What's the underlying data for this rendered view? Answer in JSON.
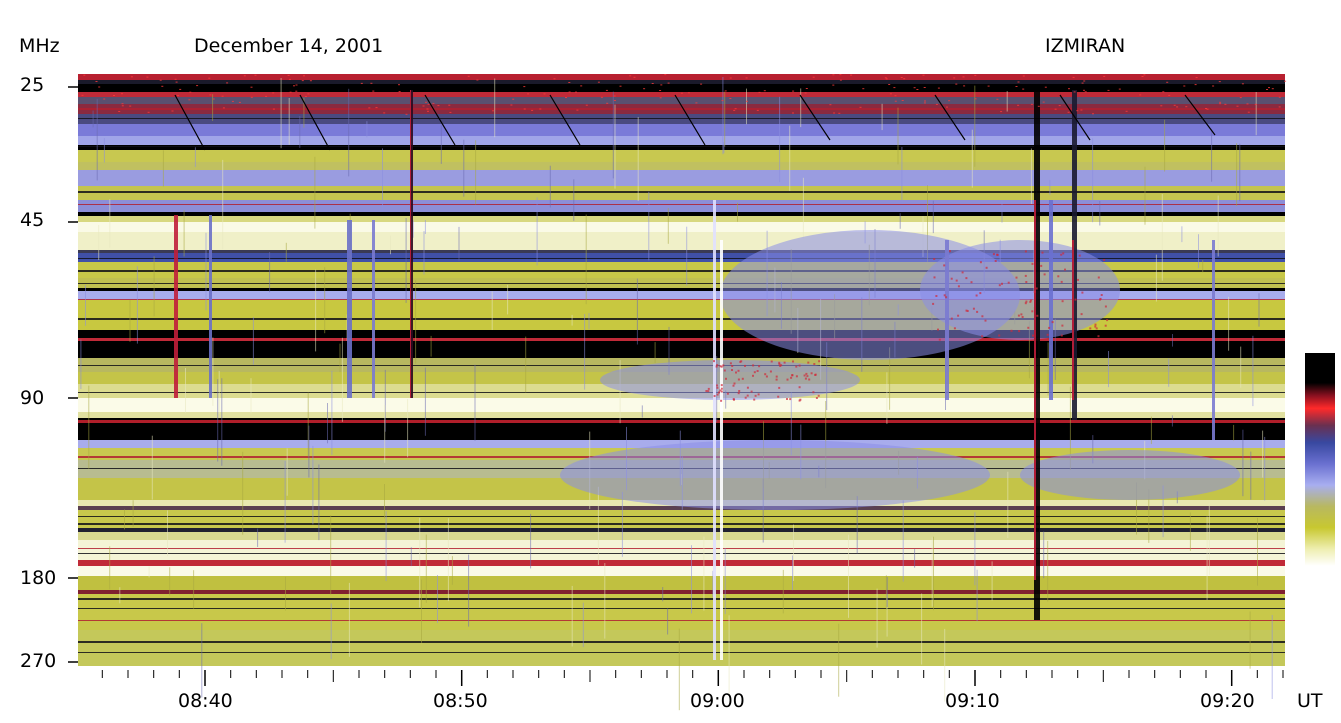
{
  "header": {
    "yunit": "MHz",
    "date": "December 14, 2001",
    "observatory": "IZMIRAN"
  },
  "chart_data": {
    "type": "heatmap",
    "title": "December 14, 2001",
    "source": "IZMIRAN",
    "ylabel": "MHz",
    "xlabel": "UT",
    "y_ticks": [
      "25",
      "45",
      "90",
      "180",
      "270"
    ],
    "y_scale": "log",
    "y_range": [
      25,
      270
    ],
    "x_ticks": [
      "08:40",
      "08:50",
      "09:00",
      "09:10",
      "09:20"
    ],
    "x_range": [
      "08:35",
      "09:22"
    ],
    "grid": false,
    "colorbar": {
      "placement": "right",
      "colors": [
        "#000000",
        "#ff2a2a",
        "#3848a0",
        "#a8aef0",
        "#c8c830",
        "#ffffff"
      ]
    }
  }
}
